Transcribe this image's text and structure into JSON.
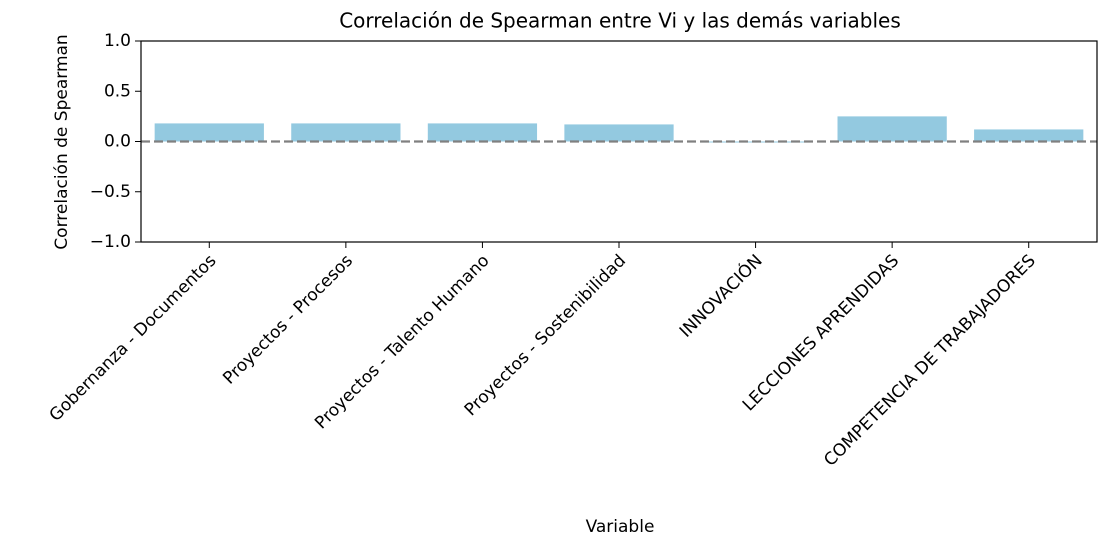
{
  "chart_data": {
    "type": "bar",
    "title": "Correlación de Spearman entre Vi y las demás variables",
    "x_label": "Variable",
    "y_label": "Correlación de Spearman",
    "categories": [
      "Gobernanza - Documentos",
      "Proyectos - Procesos",
      "Proyectos - Talento Humano",
      "Proyectos - Sostenibilidad",
      "INNOVACIÓN",
      "LECCIONES APRENDIDAS",
      "COMPETENCIA DE TRABAJADORES"
    ],
    "values": [
      0.18,
      0.18,
      0.18,
      0.17,
      -0.01,
      0.25,
      0.12
    ],
    "color": "#93c9e0",
    "ylim": [
      -1,
      1
    ],
    "yticks": [
      {
        "value": 1,
        "label": "1.0"
      },
      {
        "value": 0.5,
        "label": "0.5"
      },
      {
        "value": 0,
        "label": "0.0"
      },
      {
        "value": -0.5,
        "label": "−0.5"
      },
      {
        "value": -1,
        "label": "−1.0"
      }
    ],
    "hline": 0,
    "grid": false
  }
}
